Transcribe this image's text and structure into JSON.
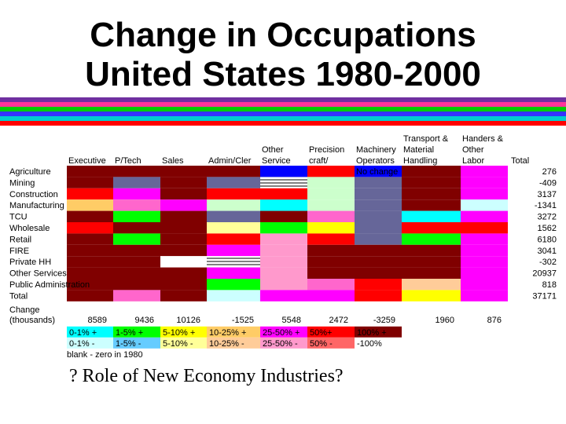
{
  "title_line1": "Change in Occupations",
  "title_line2": "United States 1980-2000",
  "subtitle": "? Role of New Economy Industries?",
  "stripe_colors": [
    "#7030a0",
    "#ff3399",
    "#00cc00",
    "#3333ff",
    "#00cccc",
    "#ff0000"
  ],
  "chart_data": {
    "type": "heatmap",
    "columns": [
      [
        "Executive"
      ],
      [
        "P/Tech"
      ],
      [
        "Sales"
      ],
      [
        "Admin/Cler"
      ],
      [
        "Other",
        "Service"
      ],
      [
        "Precision",
        "craft/"
      ],
      [
        "Machinery",
        "Operators"
      ],
      [
        "Transport &",
        "Material",
        "Handling"
      ],
      [
        "Handers &",
        "Other",
        "Labor"
      ]
    ],
    "total_header": "Total",
    "industries": [
      "Agriculture",
      "Mining",
      "Construction",
      "Manufacturing",
      "TCU",
      "Wholesale",
      "Retail",
      "FIRE",
      "Private HH",
      "Other Services",
      "Public Administration",
      "Total"
    ],
    "industry_totals": [
      "276",
      "-409",
      "3137",
      "-1341",
      "3272",
      "1562",
      "6180",
      "3041",
      "-302",
      "20937",
      "818",
      "37171"
    ],
    "cells": [
      [
        "c",
        "c",
        "c",
        "c",
        "b",
        "a",
        "t",
        "c",
        "j"
      ],
      [
        "c",
        "e",
        "c",
        "e",
        "h",
        "f",
        "e",
        "c",
        "j"
      ],
      [
        "a",
        "j",
        "c",
        "a",
        "a",
        "f",
        "e",
        "c",
        "j"
      ],
      [
        "l",
        "k",
        "j",
        "f",
        "m",
        "f",
        "e",
        "c",
        "n"
      ],
      [
        "c",
        "d",
        "c",
        "e",
        "c",
        "k",
        "e",
        "m",
        "j"
      ],
      [
        "a",
        "c",
        "c",
        "g",
        "d",
        "i",
        "e",
        "a",
        "a"
      ],
      [
        "c",
        "d",
        "c",
        "a",
        "p",
        "a",
        "e",
        "d",
        "j"
      ],
      [
        "c",
        "c",
        "c",
        "j",
        "p",
        "c",
        "c",
        "c",
        "j"
      ],
      [
        "c",
        "c",
        "w",
        "h",
        "p",
        "c",
        "c",
        "c",
        "j"
      ],
      [
        "c",
        "c",
        "c",
        "j",
        "p",
        "c",
        "c",
        "c",
        "j"
      ],
      [
        "c",
        "c",
        "c",
        "d",
        "p",
        "k",
        "a",
        "o",
        "j"
      ],
      [
        "c",
        "k",
        "c",
        "n",
        "j",
        "j",
        "a",
        "i",
        "j"
      ]
    ],
    "cell_colors": {
      "a": "#ff0000",
      "b": "#0000ff",
      "c": "#800000",
      "d": "#00ff00",
      "e": "#666699",
      "f": "#ccffcc",
      "g": "#ffff99",
      "h": "#ffffff",
      "i": "#ffff00",
      "j": "#ff00ff",
      "k": "#ff66cc",
      "l": "#ffcc66",
      "m": "#00ffff",
      "n": "#ccffff",
      "o": "#ffcc99",
      "p": "#ff99cc",
      "t": "#0000ff",
      "w": "#ffffff"
    },
    "cell_text": {
      "t": "No change"
    },
    "hatched": [
      "h"
    ],
    "change_label": [
      "Change",
      "(thousands)"
    ],
    "column_changes": [
      "8589",
      "9436",
      "10126",
      "-1525",
      "5548",
      "2472",
      "-3259",
      "1960",
      "876"
    ],
    "legend_rows": [
      [
        {
          "label": "0-1% +",
          "color": "#00ffff"
        },
        {
          "label": "1-5% +",
          "color": "#00ff00"
        },
        {
          "label": "5-10% +",
          "color": "#ffff00"
        },
        {
          "label": "10-25% +",
          "color": "#ffcc66"
        },
        {
          "label": "25-50% +",
          "color": "#ff00ff"
        },
        {
          "label": "50%+",
          "color": "#ff0000"
        },
        {
          "label": "100% +",
          "color": "#800000"
        }
      ],
      [
        {
          "label": "0-1% -",
          "color": "#ccffff"
        },
        {
          "label": "1-5% -",
          "color": "#66ccff"
        },
        {
          "label": "5-10% -",
          "color": "#ffff99"
        },
        {
          "label": "10-25% -",
          "color": "#ffcc99"
        },
        {
          "label": "25-50% -",
          "color": "#ff99cc"
        },
        {
          "label": "50% -",
          "color": "#ff6666"
        },
        {
          "label": "-100%",
          "color": "#ffffff"
        }
      ]
    ],
    "legend_note": "blank - zero in 1980"
  }
}
